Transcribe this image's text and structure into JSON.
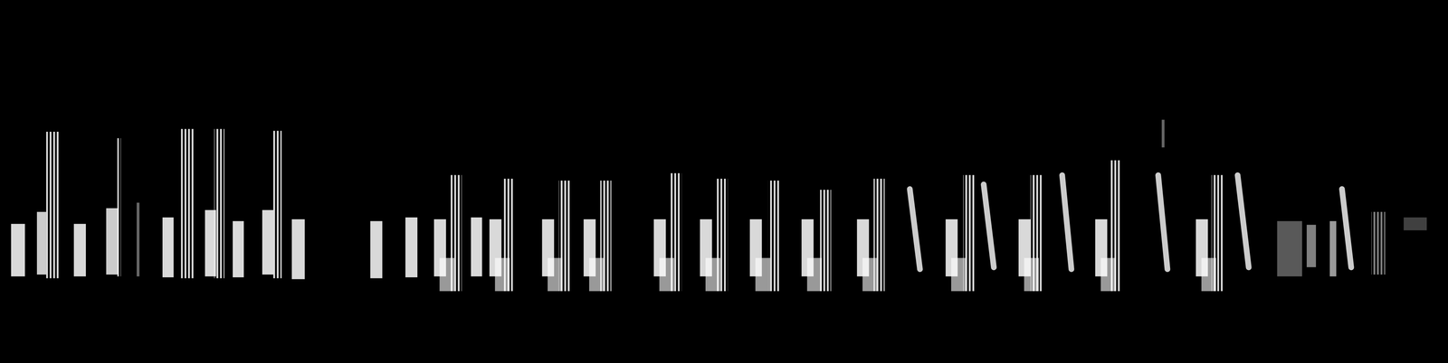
{
  "chart_data": {
    "type": "spectrogram",
    "tick_labels": false,
    "grid": false,
    "color": "#ffffff",
    "xlim": [
      0,
      1568
    ],
    "ylim": [
      0,
      394
    ],
    "syllables": [
      {
        "kind": "block",
        "x1": 12,
        "x2": 27,
        "y1": 94,
        "y2": 151,
        "intensity": 0.85
      },
      {
        "kind": "block",
        "x1": 40,
        "x2": 50,
        "y1": 96,
        "y2": 164,
        "intensity": 0.8
      },
      {
        "kind": "harmonics",
        "x1": 50,
        "x2": 65,
        "y1": 92,
        "y2": 251,
        "intensity": 0.85
      },
      {
        "kind": "block",
        "x1": 80,
        "x2": 93,
        "y1": 94,
        "y2": 151,
        "intensity": 0.85
      },
      {
        "kind": "block",
        "x1": 115,
        "x2": 128,
        "y1": 96,
        "y2": 168,
        "intensity": 0.8
      },
      {
        "kind": "harmonics",
        "x1": 127,
        "x2": 131,
        "y1": 94,
        "y2": 244,
        "intensity": 0.8
      },
      {
        "kind": "block",
        "x1": 148,
        "x2": 151,
        "y1": 94,
        "y2": 174,
        "intensity": 0.4
      },
      {
        "kind": "block",
        "x1": 176,
        "x2": 188,
        "y1": 93,
        "y2": 158,
        "intensity": 0.85
      },
      {
        "kind": "harmonics",
        "x1": 196,
        "x2": 211,
        "y1": 92,
        "y2": 254,
        "intensity": 0.85
      },
      {
        "kind": "block",
        "x1": 222,
        "x2": 234,
        "y1": 94,
        "y2": 166,
        "intensity": 0.85
      },
      {
        "kind": "harmonics",
        "x1": 232,
        "x2": 243,
        "y1": 92,
        "y2": 254,
        "intensity": 0.85
      },
      {
        "kind": "block",
        "x1": 252,
        "x2": 264,
        "y1": 93,
        "y2": 154,
        "intensity": 0.85
      },
      {
        "kind": "block",
        "x1": 284,
        "x2": 296,
        "y1": 96,
        "y2": 166,
        "intensity": 0.85
      },
      {
        "kind": "harmonics",
        "x1": 294,
        "x2": 305,
        "y1": 92,
        "y2": 252,
        "intensity": 0.85
      },
      {
        "kind": "block",
        "x1": 316,
        "x2": 330,
        "y1": 91,
        "y2": 156,
        "intensity": 0.85
      },
      {
        "kind": "block",
        "x1": 401,
        "x2": 414,
        "y1": 92,
        "y2": 154,
        "intensity": 0.85
      },
      {
        "kind": "block",
        "x1": 439,
        "x2": 452,
        "y1": 93,
        "y2": 158,
        "intensity": 0.85
      },
      {
        "kind": "block",
        "x1": 470,
        "x2": 483,
        "y1": 94,
        "y2": 156,
        "intensity": 0.85
      },
      {
        "kind": "block",
        "x1": 476,
        "x2": 492,
        "y1": 78,
        "y2": 114,
        "intensity": 0.6
      },
      {
        "kind": "harmonics",
        "x1": 488,
        "x2": 500,
        "y1": 78,
        "y2": 204,
        "intensity": 0.85
      },
      {
        "kind": "block",
        "x1": 510,
        "x2": 522,
        "y1": 94,
        "y2": 158,
        "intensity": 0.85
      },
      {
        "kind": "block",
        "x1": 530,
        "x2": 543,
        "y1": 94,
        "y2": 156,
        "intensity": 0.85
      },
      {
        "kind": "block",
        "x1": 536,
        "x2": 552,
        "y1": 78,
        "y2": 114,
        "intensity": 0.6
      },
      {
        "kind": "harmonics",
        "x1": 545,
        "x2": 557,
        "y1": 78,
        "y2": 200,
        "intensity": 0.85
      },
      {
        "kind": "block",
        "x1": 587,
        "x2": 600,
        "y1": 94,
        "y2": 156,
        "intensity": 0.85
      },
      {
        "kind": "block",
        "x1": 593,
        "x2": 609,
        "y1": 78,
        "y2": 114,
        "intensity": 0.6
      },
      {
        "kind": "harmonics",
        "x1": 605,
        "x2": 617,
        "y1": 78,
        "y2": 198,
        "intensity": 0.85
      },
      {
        "kind": "block",
        "x1": 632,
        "x2": 645,
        "y1": 94,
        "y2": 156,
        "intensity": 0.85
      },
      {
        "kind": "block",
        "x1": 638,
        "x2": 654,
        "y1": 78,
        "y2": 114,
        "intensity": 0.6
      },
      {
        "kind": "harmonics",
        "x1": 650,
        "x2": 662,
        "y1": 78,
        "y2": 198,
        "intensity": 0.85
      },
      {
        "kind": "block",
        "x1": 708,
        "x2": 721,
        "y1": 94,
        "y2": 156,
        "intensity": 0.85
      },
      {
        "kind": "block",
        "x1": 714,
        "x2": 730,
        "y1": 78,
        "y2": 114,
        "intensity": 0.6
      },
      {
        "kind": "harmonics",
        "x1": 726,
        "x2": 738,
        "y1": 78,
        "y2": 206,
        "intensity": 0.85
      },
      {
        "kind": "block",
        "x1": 758,
        "x2": 771,
        "y1": 94,
        "y2": 156,
        "intensity": 0.85
      },
      {
        "kind": "block",
        "x1": 764,
        "x2": 780,
        "y1": 78,
        "y2": 114,
        "intensity": 0.6
      },
      {
        "kind": "harmonics",
        "x1": 776,
        "x2": 788,
        "y1": 78,
        "y2": 200,
        "intensity": 0.85
      },
      {
        "kind": "block",
        "x1": 812,
        "x2": 825,
        "y1": 94,
        "y2": 156,
        "intensity": 0.85
      },
      {
        "kind": "block",
        "x1": 818,
        "x2": 834,
        "y1": 78,
        "y2": 114,
        "intensity": 0.6
      },
      {
        "kind": "harmonics",
        "x1": 832,
        "x2": 844,
        "y1": 78,
        "y2": 198,
        "intensity": 0.85
      },
      {
        "kind": "block",
        "x1": 868,
        "x2": 881,
        "y1": 94,
        "y2": 156,
        "intensity": 0.85
      },
      {
        "kind": "block",
        "x1": 874,
        "x2": 890,
        "y1": 78,
        "y2": 114,
        "intensity": 0.6
      },
      {
        "kind": "harmonics",
        "x1": 888,
        "x2": 900,
        "y1": 78,
        "y2": 188,
        "intensity": 0.85
      },
      {
        "kind": "block",
        "x1": 928,
        "x2": 941,
        "y1": 94,
        "y2": 156,
        "intensity": 0.85
      },
      {
        "kind": "block",
        "x1": 934,
        "x2": 950,
        "y1": 78,
        "y2": 114,
        "intensity": 0.6
      },
      {
        "kind": "harmonics",
        "x1": 946,
        "x2": 958,
        "y1": 78,
        "y2": 200,
        "intensity": 0.85
      },
      {
        "kind": "sweep",
        "x1": 985,
        "x2": 996,
        "y1": 102,
        "y2": 189,
        "intensity": 0.8
      },
      {
        "kind": "block",
        "x1": 1024,
        "x2": 1037,
        "y1": 94,
        "y2": 156,
        "intensity": 0.85
      },
      {
        "kind": "block",
        "x1": 1030,
        "x2": 1046,
        "y1": 78,
        "y2": 114,
        "intensity": 0.6
      },
      {
        "kind": "harmonics",
        "x1": 1043,
        "x2": 1055,
        "y1": 78,
        "y2": 204,
        "intensity": 0.85
      },
      {
        "kind": "sweep",
        "x1": 1065,
        "x2": 1076,
        "y1": 104,
        "y2": 194,
        "intensity": 0.8
      },
      {
        "kind": "block",
        "x1": 1103,
        "x2": 1116,
        "y1": 94,
        "y2": 156,
        "intensity": 0.85
      },
      {
        "kind": "block",
        "x1": 1109,
        "x2": 1125,
        "y1": 78,
        "y2": 114,
        "intensity": 0.6
      },
      {
        "kind": "harmonics",
        "x1": 1116,
        "x2": 1128,
        "y1": 78,
        "y2": 204,
        "intensity": 0.85
      },
      {
        "kind": "sweep",
        "x1": 1150,
        "x2": 1160,
        "y1": 102,
        "y2": 204,
        "intensity": 0.8
      },
      {
        "kind": "block",
        "x1": 1186,
        "x2": 1199,
        "y1": 94,
        "y2": 156,
        "intensity": 0.85
      },
      {
        "kind": "block",
        "x1": 1192,
        "x2": 1208,
        "y1": 78,
        "y2": 114,
        "intensity": 0.6
      },
      {
        "kind": "harmonics",
        "x1": 1202,
        "x2": 1214,
        "y1": 78,
        "y2": 220,
        "intensity": 0.85
      },
      {
        "kind": "sweep",
        "x1": 1254,
        "x2": 1264,
        "y1": 102,
        "y2": 204,
        "intensity": 0.8
      },
      {
        "kind": "block",
        "x1": 1258,
        "x2": 1261,
        "y1": 234,
        "y2": 264,
        "intensity": 0.4
      },
      {
        "kind": "block",
        "x1": 1295,
        "x2": 1308,
        "y1": 94,
        "y2": 156,
        "intensity": 0.85
      },
      {
        "kind": "block",
        "x1": 1301,
        "x2": 1317,
        "y1": 78,
        "y2": 114,
        "intensity": 0.6
      },
      {
        "kind": "harmonics",
        "x1": 1312,
        "x2": 1324,
        "y1": 78,
        "y2": 204,
        "intensity": 0.85
      },
      {
        "kind": "sweep",
        "x1": 1340,
        "x2": 1352,
        "y1": 104,
        "y2": 204,
        "intensity": 0.8
      },
      {
        "kind": "block",
        "x1": 1383,
        "x2": 1410,
        "y1": 94,
        "y2": 154,
        "intensity": 0.35
      },
      {
        "kind": "block",
        "x1": 1415,
        "x2": 1425,
        "y1": 104,
        "y2": 150,
        "intensity": 0.5
      },
      {
        "kind": "block",
        "x1": 1440,
        "x2": 1447,
        "y1": 94,
        "y2": 154,
        "intensity": 0.6
      },
      {
        "kind": "sweep",
        "x1": 1453,
        "x2": 1463,
        "y1": 104,
        "y2": 189,
        "intensity": 0.8
      },
      {
        "kind": "harmonics",
        "x1": 1485,
        "x2": 1500,
        "y1": 96,
        "y2": 164,
        "intensity": 0.5
      },
      {
        "kind": "block",
        "x1": 1520,
        "x2": 1545,
        "y1": 144,
        "y2": 158,
        "intensity": 0.25
      }
    ]
  }
}
